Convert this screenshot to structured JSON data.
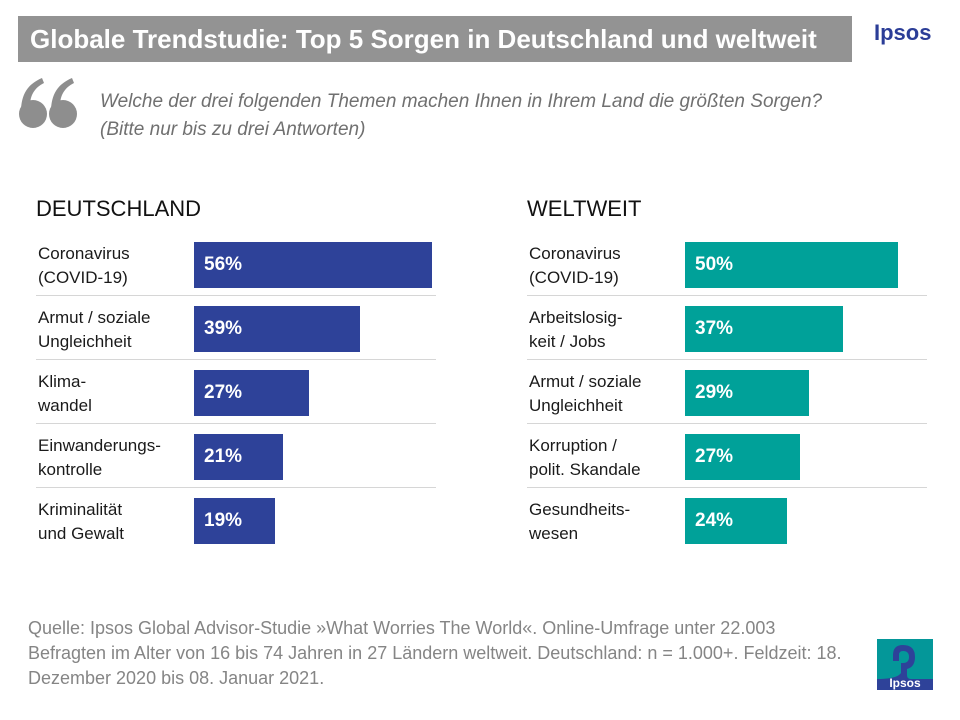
{
  "header": {
    "title": "Globale Trendstudie: Top 5 Sorgen in Deutschland und weltweit",
    "brand": "Ipsos"
  },
  "question": "Welche der drei folgenden Themen machen Ihnen in Ihrem Land die größten Sorgen? (Bitte nur bis zu drei Antworten)",
  "colors": {
    "germany_bar": "#2e4299",
    "world_bar": "#00a199",
    "title_bg": "#939393",
    "brand": "#2b3d97"
  },
  "icons": {
    "quote": "quote-icon",
    "logo": "ipsos-logo-icon"
  },
  "chart_data": [
    {
      "type": "bar",
      "title": "DEUTSCHLAND",
      "orientation": "horizontal",
      "categories": [
        "Coronavirus\n(COVID-19)",
        "Armut / soziale\nUngleichheit",
        "Klima-\nwandel",
        "Einwanderungs-\nkontrolle",
        "Kriminalität\nund Gewalt"
      ],
      "values": [
        56,
        39,
        27,
        21,
        19
      ],
      "value_labels": [
        "56%",
        "39%",
        "27%",
        "21%",
        "19%"
      ],
      "unit": "%",
      "xlim": [
        0,
        56
      ],
      "grid": false
    },
    {
      "type": "bar",
      "title": "WELTWEIT",
      "orientation": "horizontal",
      "categories": [
        "Coronavirus\n(COVID-19)",
        "Arbeitslosig-\nkeit / Jobs",
        "Armut / soziale\nUngleichheit",
        "Korruption /\npolit. Skandale",
        "Gesundheits-\nwesen"
      ],
      "values": [
        50,
        37,
        29,
        27,
        24
      ],
      "value_labels": [
        "50%",
        "37%",
        "29%",
        "27%",
        "24%"
      ],
      "unit": "%",
      "xlim": [
        0,
        50
      ],
      "grid": false
    }
  ],
  "source": "Quelle: Ipsos Global Advisor-Studie »What Worries The World«. Online-Umfrage unter 22.003 Befragten im Alter von 16 bis 74 Jahren in 27 Ländern weltweit. Deutschland: n = 1.000+. Feldzeit: 18. Dezember 2020 bis 08. Januar 2021.",
  "logo_text": "Ipsos"
}
